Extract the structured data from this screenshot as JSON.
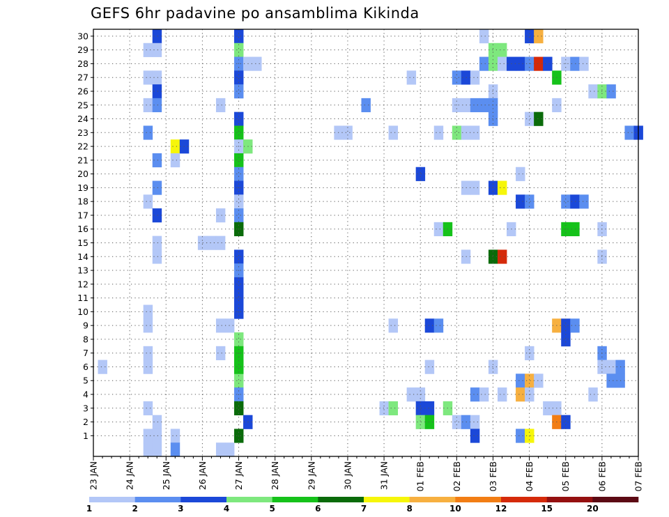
{
  "chart_data": {
    "type": "heatmap",
    "title": "GEFS 6hr padavine po ansamblima Kikinda",
    "x_tick_labels": [
      "23 JAN",
      "24 JAN",
      "25 JAN",
      "26 JAN",
      "27 JAN",
      "28 JAN",
      "29 JAN",
      "30 JAN",
      "31 JAN",
      "01 FEB",
      "02 FEB",
      "03 FEB",
      "04 FEB",
      "05 FEB",
      "06 FEB",
      "07 FEB"
    ],
    "x_range_steps": [
      0,
      60
    ],
    "y_tick_labels": [
      "1",
      "2",
      "3",
      "4",
      "5",
      "6",
      "7",
      "8",
      "9",
      "10",
      "11",
      "12",
      "13",
      "14",
      "15",
      "16",
      "17",
      "18",
      "19",
      "20",
      "21",
      "22",
      "23",
      "24",
      "25",
      "26",
      "27",
      "28",
      "29",
      "30"
    ],
    "y_range": [
      0,
      30
    ],
    "grid": true,
    "colorbar": {
      "labels": [
        "1",
        "2",
        "3",
        "4",
        "5",
        "6",
        "7",
        "8",
        "10",
        "12",
        "15",
        "20"
      ],
      "colors": [
        "#b3c7f7",
        "#5b8ef0",
        "#1b48d8",
        "#7ee87e",
        "#15c21a",
        "#0a6b0a",
        "#f6f60a",
        "#f7b040",
        "#f27d14",
        "#d52a0a",
        "#951010",
        "#5c0a14"
      ]
    },
    "cells": [
      [
        30,
        7,
        2
      ],
      [
        30,
        16,
        2
      ],
      [
        30,
        43,
        0
      ],
      [
        30,
        48,
        2
      ],
      [
        30,
        49,
        7
      ],
      [
        29,
        6,
        0
      ],
      [
        29,
        7,
        0
      ],
      [
        29,
        16,
        3
      ],
      [
        29,
        44,
        3
      ],
      [
        29,
        45,
        3
      ],
      [
        28,
        16,
        1
      ],
      [
        28,
        17,
        0
      ],
      [
        28,
        18,
        0
      ],
      [
        28,
        43,
        1
      ],
      [
        28,
        44,
        3
      ],
      [
        28,
        45,
        0
      ],
      [
        28,
        46,
        2
      ],
      [
        28,
        47,
        2
      ],
      [
        28,
        48,
        1
      ],
      [
        28,
        49,
        9
      ],
      [
        28,
        50,
        2
      ],
      [
        28,
        52,
        0
      ],
      [
        28,
        53,
        1
      ],
      [
        28,
        54,
        0
      ],
      [
        27,
        6,
        0
      ],
      [
        27,
        7,
        0
      ],
      [
        27,
        16,
        2
      ],
      [
        27,
        35,
        0
      ],
      [
        27,
        40,
        1
      ],
      [
        27,
        41,
        2
      ],
      [
        27,
        42,
        0
      ],
      [
        27,
        51,
        4
      ],
      [
        26,
        7,
        2
      ],
      [
        26,
        16,
        1
      ],
      [
        26,
        44,
        0
      ],
      [
        26,
        55,
        0
      ],
      [
        26,
        56,
        3
      ],
      [
        26,
        57,
        1
      ],
      [
        25,
        6,
        0
      ],
      [
        25,
        7,
        1
      ],
      [
        25,
        14,
        0
      ],
      [
        25,
        30,
        1
      ],
      [
        25,
        40,
        0
      ],
      [
        25,
        41,
        0
      ],
      [
        25,
        42,
        1
      ],
      [
        25,
        43,
        1
      ],
      [
        25,
        44,
        1
      ],
      [
        25,
        51,
        0
      ],
      [
        24,
        16,
        2
      ],
      [
        24,
        44,
        1
      ],
      [
        24,
        48,
        0
      ],
      [
        24,
        49,
        5
      ],
      [
        23,
        6,
        1
      ],
      [
        23,
        16,
        4
      ],
      [
        23,
        27,
        0
      ],
      [
        23,
        28,
        0
      ],
      [
        23,
        33,
        0
      ],
      [
        23,
        38,
        0
      ],
      [
        23,
        40,
        3
      ],
      [
        23,
        41,
        0
      ],
      [
        23,
        42,
        0
      ],
      [
        23,
        59,
        1
      ],
      [
        23,
        60,
        2
      ],
      [
        22,
        9,
        6
      ],
      [
        22,
        10,
        2
      ],
      [
        22,
        16,
        0
      ],
      [
        22,
        17,
        3
      ],
      [
        21,
        7,
        1
      ],
      [
        21,
        9,
        0
      ],
      [
        21,
        16,
        4
      ],
      [
        20,
        16,
        1
      ],
      [
        20,
        36,
        2
      ],
      [
        20,
        47,
        0
      ],
      [
        19,
        7,
        1
      ],
      [
        19,
        16,
        2
      ],
      [
        19,
        41,
        0
      ],
      [
        19,
        42,
        0
      ],
      [
        19,
        44,
        2
      ],
      [
        19,
        45,
        6
      ],
      [
        18,
        6,
        0
      ],
      [
        18,
        16,
        0
      ],
      [
        18,
        47,
        2
      ],
      [
        18,
        48,
        1
      ],
      [
        18,
        52,
        1
      ],
      [
        18,
        53,
        2
      ],
      [
        18,
        54,
        1
      ],
      [
        17,
        7,
        2
      ],
      [
        17,
        14,
        0
      ],
      [
        17,
        16,
        1
      ],
      [
        16,
        16,
        5
      ],
      [
        16,
        38,
        0
      ],
      [
        16,
        39,
        4
      ],
      [
        16,
        46,
        0
      ],
      [
        16,
        52,
        4
      ],
      [
        16,
        53,
        4
      ],
      [
        16,
        56,
        0
      ],
      [
        15,
        7,
        0
      ],
      [
        15,
        12,
        0
      ],
      [
        15,
        13,
        0
      ],
      [
        15,
        14,
        0
      ],
      [
        14,
        7,
        0
      ],
      [
        14,
        16,
        2
      ],
      [
        14,
        41,
        0
      ],
      [
        14,
        44,
        5
      ],
      [
        14,
        45,
        9
      ],
      [
        14,
        56,
        0
      ],
      [
        13,
        16,
        1
      ],
      [
        12,
        16,
        2
      ],
      [
        11,
        16,
        2
      ],
      [
        10,
        6,
        0
      ],
      [
        10,
        16,
        2
      ],
      [
        9,
        6,
        0
      ],
      [
        9,
        14,
        0
      ],
      [
        9,
        15,
        0
      ],
      [
        9,
        33,
        0
      ],
      [
        9,
        37,
        2
      ],
      [
        9,
        38,
        1
      ],
      [
        9,
        51,
        7
      ],
      [
        9,
        52,
        2
      ],
      [
        9,
        53,
        1
      ],
      [
        8,
        16,
        3
      ],
      [
        8,
        52,
        2
      ],
      [
        7,
        6,
        0
      ],
      [
        7,
        14,
        0
      ],
      [
        7,
        16,
        4
      ],
      [
        7,
        48,
        0
      ],
      [
        7,
        56,
        1
      ],
      [
        6,
        1,
        0
      ],
      [
        6,
        6,
        0
      ],
      [
        6,
        16,
        4
      ],
      [
        6,
        37,
        0
      ],
      [
        6,
        44,
        0
      ],
      [
        6,
        56,
        0
      ],
      [
        6,
        57,
        0
      ],
      [
        6,
        58,
        1
      ],
      [
        5,
        16,
        3
      ],
      [
        6,
        16,
        4
      ],
      [
        5,
        47,
        1
      ],
      [
        5,
        48,
        7
      ],
      [
        5,
        49,
        0
      ],
      [
        5,
        57,
        1
      ],
      [
        5,
        58,
        1
      ],
      [
        4,
        16,
        1
      ],
      [
        4,
        35,
        0
      ],
      [
        4,
        36,
        0
      ],
      [
        4,
        42,
        1
      ],
      [
        4,
        43,
        0
      ],
      [
        4,
        45,
        0
      ],
      [
        4,
        47,
        7
      ],
      [
        4,
        48,
        0
      ],
      [
        4,
        55,
        0
      ],
      [
        3,
        6,
        0
      ],
      [
        3,
        16,
        5
      ],
      [
        3,
        32,
        0
      ],
      [
        3,
        33,
        3
      ],
      [
        3,
        36,
        2
      ],
      [
        3,
        37,
        2
      ],
      [
        3,
        39,
        3
      ],
      [
        3,
        50,
        0
      ],
      [
        3,
        51,
        0
      ],
      [
        2,
        7,
        0
      ],
      [
        2,
        17,
        2
      ],
      [
        2,
        36,
        3
      ],
      [
        2,
        37,
        4
      ],
      [
        2,
        40,
        0
      ],
      [
        2,
        41,
        1
      ],
      [
        2,
        42,
        0
      ],
      [
        2,
        51,
        8
      ],
      [
        2,
        52,
        2
      ],
      [
        1,
        6,
        0
      ],
      [
        1,
        7,
        0
      ],
      [
        1,
        9,
        0
      ],
      [
        1,
        16,
        5
      ],
      [
        1,
        42,
        2
      ],
      [
        1,
        47,
        1
      ],
      [
        1,
        48,
        6
      ],
      [
        0,
        6,
        0
      ],
      [
        0,
        7,
        0
      ],
      [
        0,
        9,
        1
      ],
      [
        0,
        14,
        0
      ],
      [
        0,
        15,
        0
      ]
    ]
  }
}
